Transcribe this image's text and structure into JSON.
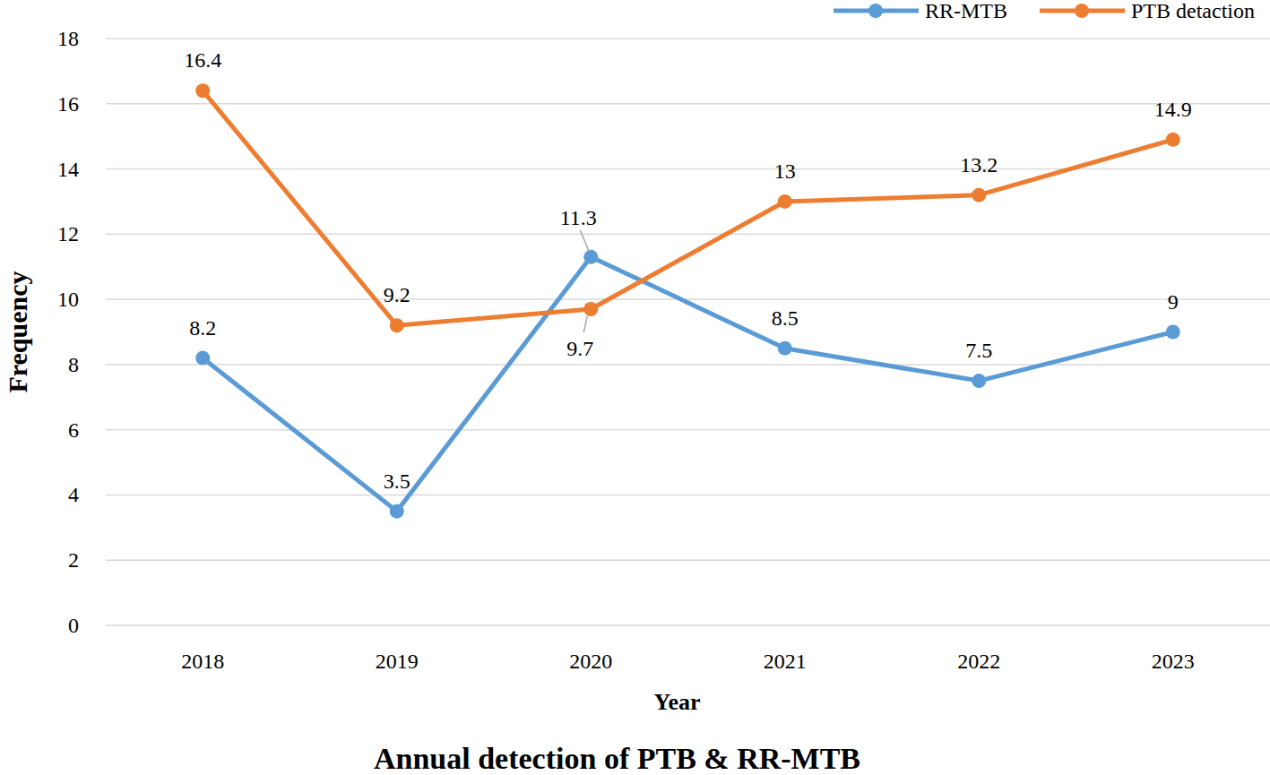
{
  "chart_data": {
    "type": "line",
    "title": "Annual detection of PTB & RR-MTB",
    "x_label": "Year",
    "y_label": "Frequency",
    "categories": [
      "2018",
      "2019",
      "2020",
      "2021",
      "2022",
      "2023"
    ],
    "series": [
      {
        "name": "RR-MTB",
        "color": "#5b9bd5",
        "values": [
          8.2,
          3.5,
          11.3,
          8.5,
          7.5,
          9
        ]
      },
      {
        "name": "PTB detaction",
        "color": "#ed7d31",
        "values": [
          16.4,
          9.2,
          9.7,
          13,
          13.2,
          14.9
        ]
      }
    ],
    "ylim": [
      0,
      18
    ],
    "yticks": [
      0,
      2,
      4,
      6,
      8,
      10,
      12,
      14,
      16,
      18
    ],
    "grid": true,
    "legend": "top-right",
    "data_labels": true,
    "marker": "circle"
  }
}
